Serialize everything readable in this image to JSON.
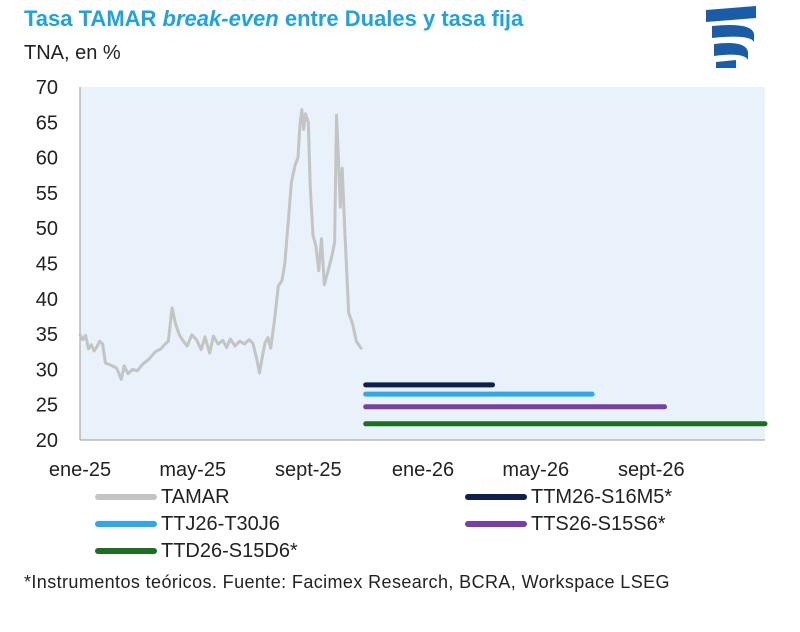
{
  "header": {
    "title_pre": "Tasa TAMAR ",
    "title_em": "break-even",
    "title_post": " entre Duales y tasa fija",
    "subtitle": "TNA, en %"
  },
  "logo": {
    "icon": "facimex-logo-icon",
    "color": "#1b5ca8"
  },
  "footnote": "*Instrumentos teóricos. Fuente: Facimex Research, BCRA, Workspace LSEG",
  "chart_data": {
    "type": "line",
    "title": "Tasa TAMAR break-even entre Duales y tasa fija",
    "ylabel": "TNA, en %",
    "ylim": [
      20,
      70
    ],
    "yticks": [
      20,
      25,
      30,
      35,
      40,
      45,
      50,
      55,
      60,
      65,
      70
    ],
    "xlim": [
      "2025-01-01",
      "2026-12-31"
    ],
    "xticks": [
      {
        "date": "2025-01-01",
        "label": "ene-25"
      },
      {
        "date": "2025-05-01",
        "label": "may-25"
      },
      {
        "date": "2025-09-01",
        "label": "sept-25"
      },
      {
        "date": "2026-01-01",
        "label": "ene-26"
      },
      {
        "date": "2026-05-01",
        "label": "may-26"
      },
      {
        "date": "2026-09-01",
        "label": "sept-26"
      }
    ],
    "grid": false,
    "legend_position": "bottom",
    "background": "#e9f1fa",
    "series": [
      {
        "name": "TAMAR",
        "color": "#c4c4c4",
        "points": [
          [
            "2025-01-01",
            34.9
          ],
          [
            "2025-01-04",
            34.2
          ],
          [
            "2025-01-07",
            34.8
          ],
          [
            "2025-01-10",
            32.9
          ],
          [
            "2025-01-13",
            33.5
          ],
          [
            "2025-01-16",
            32.6
          ],
          [
            "2025-01-19",
            33.2
          ],
          [
            "2025-01-22",
            34.0
          ],
          [
            "2025-01-25",
            33.6
          ],
          [
            "2025-01-28",
            30.9
          ],
          [
            "2025-02-03",
            30.6
          ],
          [
            "2025-02-09",
            30.2
          ],
          [
            "2025-02-14",
            28.6
          ],
          [
            "2025-02-17",
            30.5
          ],
          [
            "2025-02-21",
            29.4
          ],
          [
            "2025-02-26",
            30.0
          ],
          [
            "2025-03-03",
            29.8
          ],
          [
            "2025-03-09",
            30.8
          ],
          [
            "2025-03-15",
            31.4
          ],
          [
            "2025-03-22",
            32.5
          ],
          [
            "2025-03-28",
            32.9
          ],
          [
            "2025-04-01",
            33.5
          ],
          [
            "2025-04-05",
            34.0
          ],
          [
            "2025-04-09",
            38.7
          ],
          [
            "2025-04-13",
            36.3
          ],
          [
            "2025-04-17",
            34.8
          ],
          [
            "2025-04-21",
            34.0
          ],
          [
            "2025-04-25",
            33.3
          ],
          [
            "2025-04-30",
            34.9
          ],
          [
            "2025-05-05",
            34.2
          ],
          [
            "2025-05-10",
            32.8
          ],
          [
            "2025-05-14",
            34.6
          ],
          [
            "2025-05-19",
            32.3
          ],
          [
            "2025-05-23",
            34.7
          ],
          [
            "2025-05-28",
            33.6
          ],
          [
            "2025-06-02",
            34.1
          ],
          [
            "2025-06-06",
            33.1
          ],
          [
            "2025-06-10",
            34.3
          ],
          [
            "2025-06-15",
            33.3
          ],
          [
            "2025-06-20",
            34.0
          ],
          [
            "2025-06-25",
            33.6
          ],
          [
            "2025-06-30",
            34.2
          ],
          [
            "2025-07-04",
            33.7
          ],
          [
            "2025-07-08",
            31.5
          ],
          [
            "2025-07-11",
            29.5
          ],
          [
            "2025-07-14",
            31.8
          ],
          [
            "2025-07-17",
            33.8
          ],
          [
            "2025-07-20",
            34.5
          ],
          [
            "2025-07-23",
            33.0
          ],
          [
            "2025-07-27",
            37.0
          ],
          [
            "2025-07-31",
            41.8
          ],
          [
            "2025-08-04",
            42.6
          ],
          [
            "2025-08-07",
            45.0
          ],
          [
            "2025-08-10",
            50.0
          ],
          [
            "2025-08-14",
            56.5
          ],
          [
            "2025-08-18",
            59.0
          ],
          [
            "2025-08-21",
            60.0
          ],
          [
            "2025-08-23",
            64.5
          ],
          [
            "2025-08-25",
            66.8
          ],
          [
            "2025-08-27",
            64.0
          ],
          [
            "2025-08-29",
            66.2
          ],
          [
            "2025-09-01",
            65.0
          ],
          [
            "2025-09-03",
            56.0
          ],
          [
            "2025-09-06",
            49.0
          ],
          [
            "2025-09-09",
            47.5
          ],
          [
            "2025-09-12",
            44.0
          ],
          [
            "2025-09-15",
            48.5
          ],
          [
            "2025-09-18",
            42.0
          ],
          [
            "2025-09-22",
            44.0
          ],
          [
            "2025-09-26",
            46.0
          ],
          [
            "2025-09-29",
            48.0
          ],
          [
            "2025-10-01",
            66.0
          ],
          [
            "2025-10-03",
            60.0
          ],
          [
            "2025-10-05",
            53.0
          ],
          [
            "2025-10-07",
            58.5
          ],
          [
            "2025-10-10",
            49.0
          ],
          [
            "2025-10-14",
            38.0
          ],
          [
            "2025-10-18",
            36.5
          ],
          [
            "2025-10-22",
            34.0
          ],
          [
            "2025-10-27",
            33.0
          ]
        ]
      },
      {
        "name": "TTM26-S16M5*",
        "color": "#0f1f4f",
        "points": [
          [
            "2025-11-01",
            27.8
          ],
          [
            "2026-03-16",
            27.8
          ]
        ]
      },
      {
        "name": "TTJ26-T30J6",
        "color": "#2ea8ec",
        "points": [
          [
            "2025-11-01",
            26.5
          ],
          [
            "2026-06-30",
            26.5
          ]
        ]
      },
      {
        "name": "TTS26-S15S6*",
        "color": "#7a3fa6",
        "points": [
          [
            "2025-11-01",
            24.7
          ],
          [
            "2026-09-15",
            24.7
          ]
        ]
      },
      {
        "name": "TTD26-S15D6*",
        "color": "#1b6e22",
        "points": [
          [
            "2025-11-01",
            22.3
          ],
          [
            "2026-12-31",
            22.3
          ]
        ]
      }
    ]
  }
}
